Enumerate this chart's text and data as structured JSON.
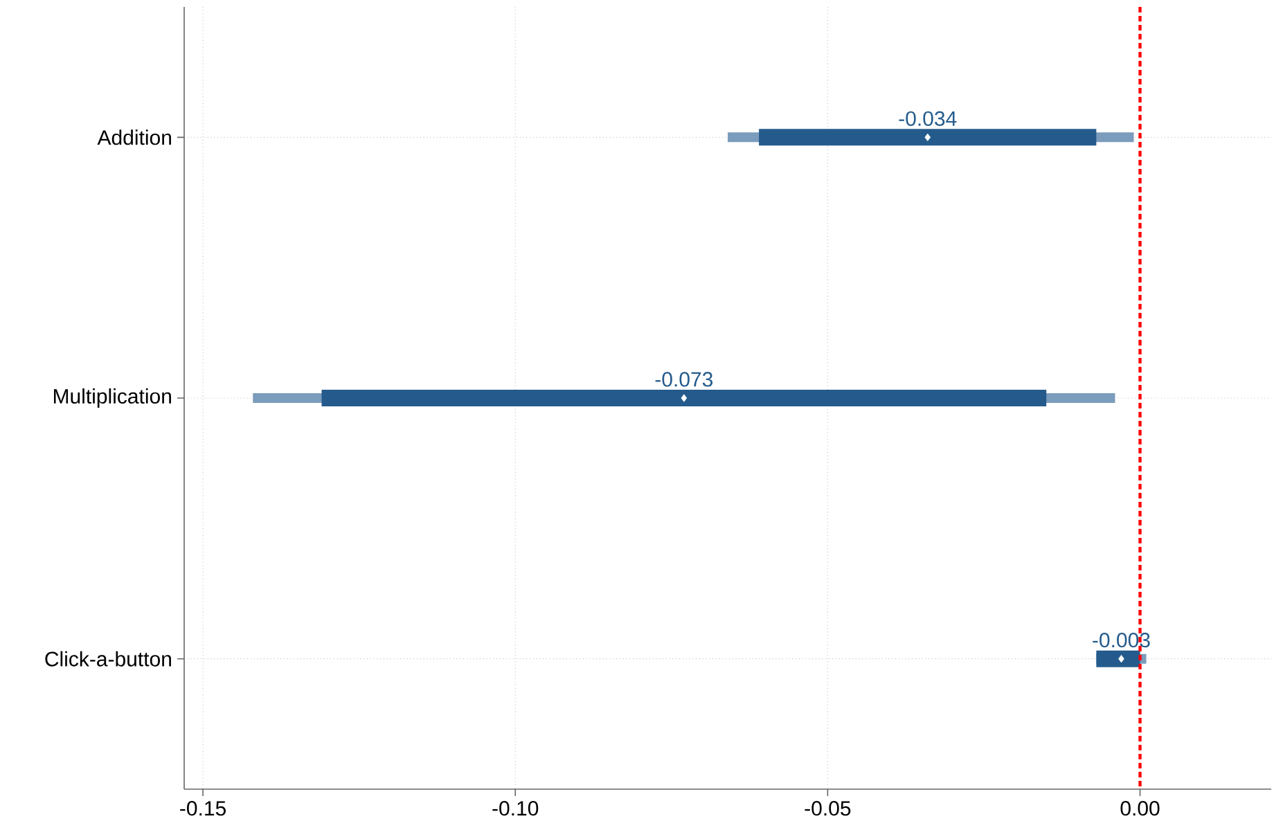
{
  "chart_data": {
    "type": "bar",
    "orientation": "horizontal",
    "categories": [
      "Addition",
      "Multiplication",
      "Click-a-button"
    ],
    "series": [
      {
        "color": "#7b9cbc",
        "base": [
          -0.066,
          -0.142,
          -0.007
        ],
        "values": [
          0.065,
          0.138,
          0.008
        ]
      },
      {
        "color": "#245b8c",
        "base": [
          -0.061,
          -0.131,
          -0.007
        ],
        "values": [
          0.054,
          0.116,
          0.007
        ]
      },
      {
        "type": "scatter",
        "color": "#ffffff",
        "marker": "diamond",
        "values": [
          -0.034,
          -0.073,
          -0.003
        ],
        "value_labels": [
          "-0.034",
          "-0.073",
          "-0.003"
        ]
      }
    ],
    "xlim": [
      -0.153,
      0.021
    ],
    "xticks": [
      {
        "value": -0.15,
        "label": "-0.15"
      },
      {
        "value": -0.1,
        "label": "-0.10"
      },
      {
        "value": -0.05,
        "label": "-0.05"
      },
      {
        "value": 0,
        "label": "0.00"
      }
    ],
    "grid": true,
    "ref_lines": [
      {
        "axis": "x",
        "value": 0,
        "color": "#ff0000",
        "line_style": "dashed"
      }
    ]
  }
}
